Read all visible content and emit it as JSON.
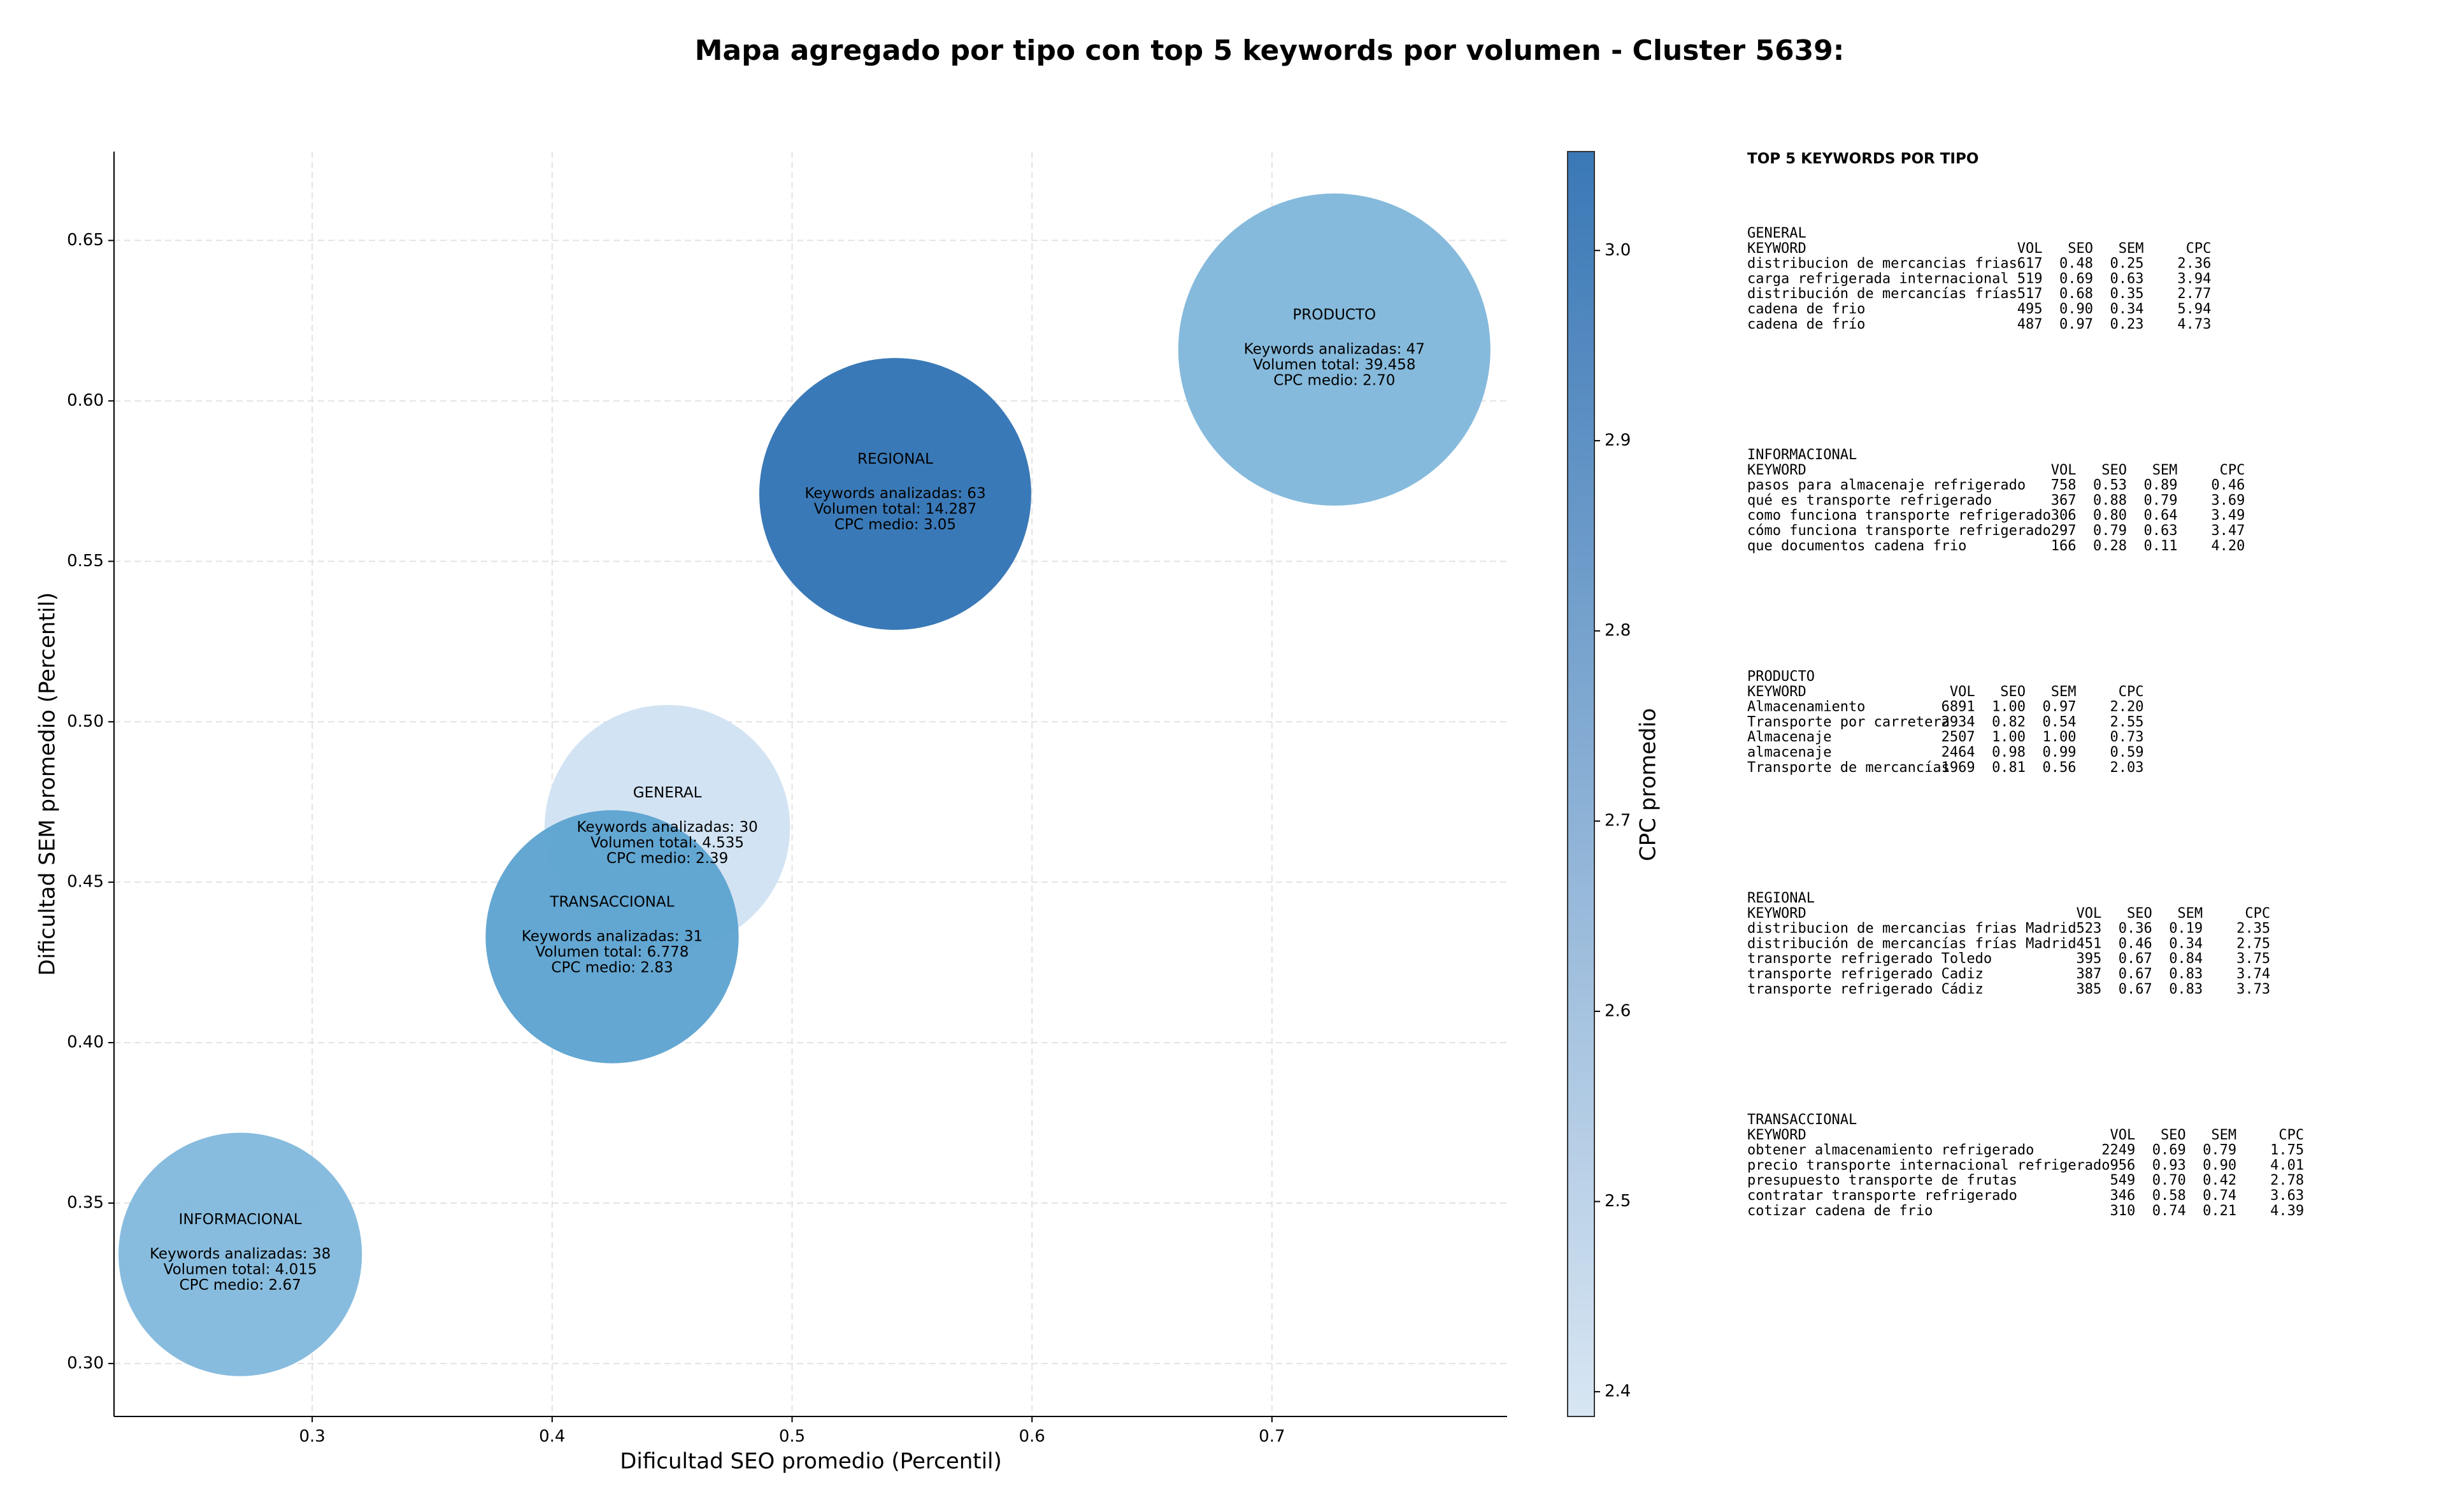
{
  "chart_data": {
    "type": "bubble",
    "title": "Mapa agregado por tipo con top 5 keywords por volumen - Cluster 5639:",
    "xlabel": "Dificultad SEO promedio (Percentil)",
    "ylabel": "Dificultad SEM promedio (Percentil)",
    "xlim": [
      0.2174,
      0.798
    ],
    "ylim": [
      0.2835,
      0.6777
    ],
    "xticks": [
      0.3,
      0.4,
      0.5,
      0.6,
      0.7
    ],
    "yticks": [
      {
        "value": 0.3,
        "label": "0.30"
      },
      0.35,
      {
        "value": 0.4,
        "label": "0.40"
      },
      0.45,
      {
        "value": 0.5,
        "label": "0.50"
      },
      0.55,
      {
        "value": 0.6,
        "label": "0.60"
      },
      0.65
    ],
    "grid": true,
    "colorbar": {
      "label": "CPC promedio",
      "lim": [
        2.387,
        3.052
      ],
      "ticks": [
        2.4,
        2.5,
        2.6,
        2.7,
        2.8,
        2.9,
        {
          "value": 3,
          "label": "3.0"
        }
      ],
      "colors": [
        "#d8e6f3",
        "#3a78b6"
      ]
    },
    "series": [
      {
        "name": "GENERAL",
        "color": "#d0e1f2",
        "x": 0.448,
        "y": 0.467,
        "size": 4535,
        "cpc": 2.39,
        "labels": [
          "Keywords analizadas: 30",
          "Volumen total: 4.535",
          "CPC medio: 2.39"
        ]
      },
      {
        "name": "INFORMACIONAL",
        "color": "#82b8dc",
        "x": 0.27,
        "y": 0.334,
        "size": 4015,
        "cpc": 2.67,
        "labels": [
          "Keywords analizadas: 38",
          "Volumen total: 4.015",
          "CPC medio: 2.67"
        ]
      },
      {
        "name": "PRODUCTO",
        "color": "#80b6da",
        "x": 0.726,
        "y": 0.616,
        "size": 39458,
        "cpc": 2.7,
        "labels": [
          "Keywords analizadas: 47",
          "Volumen total: 39.458",
          "CPC medio: 2.70"
        ]
      },
      {
        "name": "REGIONAL",
        "color": "#2f72b3",
        "x": 0.543,
        "y": 0.571,
        "size": 14287,
        "cpc": 3.05,
        "labels": [
          "Keywords analizadas: 63",
          "Volumen total: 14.287",
          "CPC medio: 3.05"
        ]
      },
      {
        "name": "TRANSACCIONAL",
        "color": "#5ca2d0",
        "x": 0.425,
        "y": 0.433,
        "size": 6778,
        "cpc": 2.83,
        "labels": [
          "Keywords analizadas: 31",
          "Volumen total: 6.778",
          "CPC medio: 2.83"
        ]
      }
    ]
  },
  "keyword_panel": {
    "title": "TOP 5 KEYWORDS POR TIPO",
    "blocks": [
      {
        "name": "GENERAL",
        "columns": [
          "KEYWORD",
          "VOL",
          "SEO",
          "SEM",
          "CPC"
        ],
        "rows": [
          [
            "distribucion de mercancias frias",
            "617",
            "0.48",
            "0.25",
            "2.36"
          ],
          [
            "carga refrigerada internacional",
            "519",
            "0.69",
            "0.63",
            "3.94"
          ],
          [
            "distribución de mercancías frías",
            "517",
            "0.68",
            "0.35",
            "2.77"
          ],
          [
            "cadena de frio",
            "495",
            "0.90",
            "0.34",
            "5.94"
          ],
          [
            "cadena de frío",
            "487",
            "0.97",
            "0.23",
            "4.73"
          ]
        ]
      },
      {
        "name": "INFORMACIONAL",
        "columns": [
          "KEYWORD",
          "VOL",
          "SEO",
          "SEM",
          "CPC"
        ],
        "rows": [
          [
            "pasos para almacenaje refrigerado",
            "758",
            "0.53",
            "0.89",
            "0.46"
          ],
          [
            "qué es transporte refrigerado",
            "367",
            "0.88",
            "0.79",
            "3.69"
          ],
          [
            "como funciona transporte refrigerado",
            "306",
            "0.80",
            "0.64",
            "3.49"
          ],
          [
            "cómo funciona transporte refrigerado",
            "297",
            "0.79",
            "0.63",
            "3.47"
          ],
          [
            "que documentos cadena frio",
            "166",
            "0.28",
            "0.11",
            "4.20"
          ]
        ]
      },
      {
        "name": "PRODUCTO",
        "columns": [
          "KEYWORD",
          "VOL",
          "SEO",
          "SEM",
          "CPC"
        ],
        "rows": [
          [
            "Almacenamiento",
            "6891",
            "1.00",
            "0.97",
            "2.20"
          ],
          [
            "Transporte por carretera",
            "2934",
            "0.82",
            "0.54",
            "2.55"
          ],
          [
            "Almacenaje",
            "2507",
            "1.00",
            "1.00",
            "0.73"
          ],
          [
            "almacenaje",
            "2464",
            "0.98",
            "0.99",
            "0.59"
          ],
          [
            "Transporte de mercancías",
            "1969",
            "0.81",
            "0.56",
            "2.03"
          ]
        ]
      },
      {
        "name": "REGIONAL",
        "columns": [
          "KEYWORD",
          "VOL",
          "SEO",
          "SEM",
          "CPC"
        ],
        "rows": [
          [
            "distribucion de mercancias frias Madrid",
            "523",
            "0.36",
            "0.19",
            "2.35"
          ],
          [
            "distribución de mercancías frías Madrid",
            "451",
            "0.46",
            "0.34",
            "2.75"
          ],
          [
            "transporte refrigerado Toledo",
            "395",
            "0.67",
            "0.84",
            "3.75"
          ],
          [
            "transporte refrigerado Cadiz",
            "387",
            "0.67",
            "0.83",
            "3.74"
          ],
          [
            "transporte refrigerado Cádiz",
            "385",
            "0.67",
            "0.83",
            "3.73"
          ]
        ]
      },
      {
        "name": "TRANSACCIONAL",
        "columns": [
          "KEYWORD",
          "VOL",
          "SEO",
          "SEM",
          "CPC"
        ],
        "rows": [
          [
            "obtener almacenamiento refrigerado",
            "2249",
            "0.69",
            "0.79",
            "1.75"
          ],
          [
            "precio transporte internacional refrigerado",
            "956",
            "0.93",
            "0.90",
            "4.01"
          ],
          [
            "presupuesto transporte de frutas",
            "549",
            "0.70",
            "0.42",
            "2.78"
          ],
          [
            "contratar transporte refrigerado",
            "346",
            "0.58",
            "0.74",
            "3.63"
          ],
          [
            "cotizar cadena de frio",
            "310",
            "0.74",
            "0.21",
            "4.39"
          ]
        ]
      }
    ]
  }
}
